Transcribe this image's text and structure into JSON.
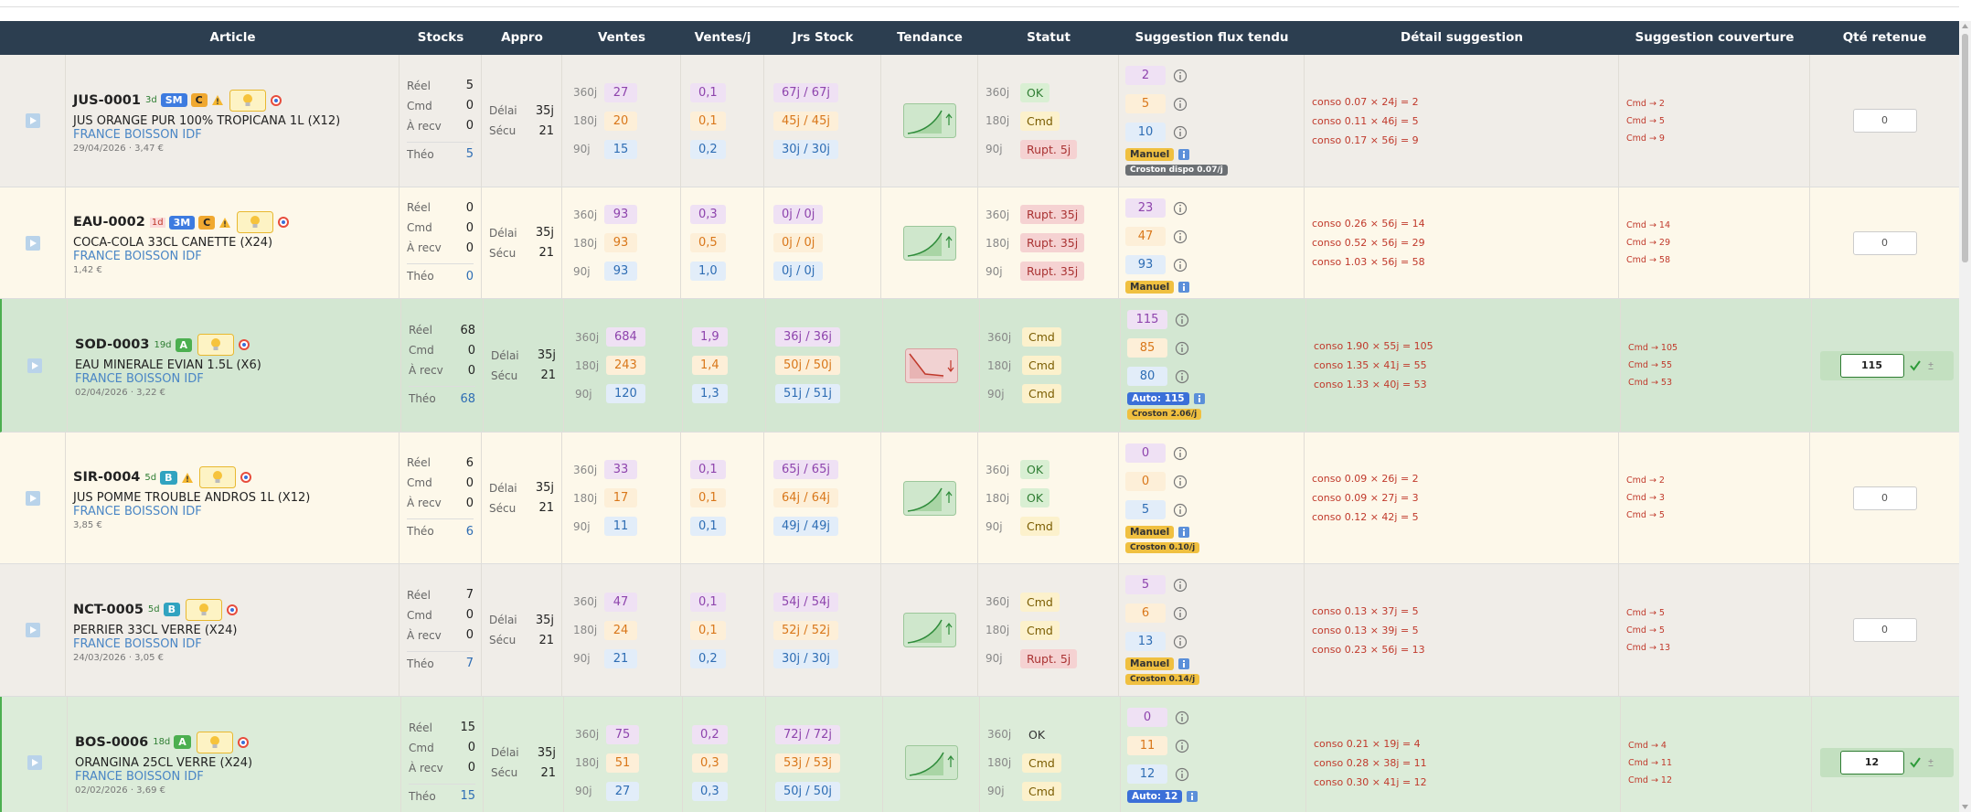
{
  "header": {
    "columns": [
      "Article",
      "Stocks",
      "Appro",
      "Ventes",
      "Ventes/j",
      "Jrs Stock",
      "Tendance",
      "Statut",
      "Suggestion flux tendu",
      "Détail suggestion",
      "Suggestion couverture",
      "Qté retenue"
    ]
  },
  "labels": {
    "periods": [
      "360j",
      "180j",
      "90j"
    ],
    "stock": [
      "Réel",
      "Cmd",
      "À recv",
      "Théo"
    ],
    "delai": "Délai",
    "secu": "Sécu"
  },
  "rows": [
    {
      "tone": "grey",
      "code": "JUS-0001",
      "days": {
        "label": "3d",
        "tone": "green"
      },
      "badges": [
        {
          "label": "SM",
          "tone": "blue"
        },
        {
          "label": "C",
          "tone": "orange"
        }
      ],
      "warning": true,
      "name": "JUS ORANGE PUR 100% TROPICANA 1L (X12)",
      "supplier": "FRANCE BOISSON IDF",
      "meta": "29/04/2026 · 3,47 €",
      "stock": [
        5,
        0,
        0,
        5
      ],
      "delai": "35j",
      "secu": 21,
      "ventes": [
        27,
        20,
        15
      ],
      "ventes_j": [
        "0,1",
        "0,1",
        "0,2"
      ],
      "jrs": [
        "67j / 67j",
        "45j / 45j",
        "30j / 30j"
      ],
      "trend": "up",
      "statut": [
        {
          "label": "OK",
          "tone": "ok"
        },
        {
          "label": "Cmd",
          "tone": "cmd"
        },
        {
          "label": "Rupt. 5j",
          "tone": "rupt"
        }
      ],
      "suggestion": [
        2,
        5,
        10
      ],
      "mode": {
        "label": "Manuel",
        "tone": "manual"
      },
      "croston": {
        "label": "Croston dispo 0.07/j",
        "tone": "dark"
      },
      "detail": [
        "conso 0.07 × 24j = 2",
        "conso 0.11 × 46j = 5",
        "conso 0.17 × 56j = 9"
      ],
      "couverture": [
        "Cmd → 2",
        "Cmd → 5",
        "Cmd → 9"
      ],
      "qte": 0,
      "accepted": false
    },
    {
      "tone": "cream",
      "code": "EAU-0002",
      "days": {
        "label": "1d",
        "tone": "red"
      },
      "badges": [
        {
          "label": "3M",
          "tone": "blue"
        },
        {
          "label": "C",
          "tone": "orange"
        }
      ],
      "warning": true,
      "name": "COCA-COLA 33CL CANETTE (X24)",
      "supplier": "FRANCE BOISSON IDF",
      "meta": "1,42 €",
      "stock": [
        0,
        0,
        0,
        0
      ],
      "delai": "35j",
      "secu": 21,
      "ventes": [
        93,
        93,
        93
      ],
      "ventes_j": [
        "0,3",
        "0,5",
        "1,0"
      ],
      "jrs": [
        "0j / 0j",
        "0j / 0j",
        "0j / 0j"
      ],
      "trend": "up",
      "statut": [
        {
          "label": "Rupt. 35j",
          "tone": "rupt"
        },
        {
          "label": "Rupt. 35j",
          "tone": "rupt"
        },
        {
          "label": "Rupt. 35j",
          "tone": "rupt"
        }
      ],
      "suggestion": [
        23,
        47,
        93
      ],
      "mode": {
        "label": "Manuel",
        "tone": "manual"
      },
      "detail": [
        "conso 0.26 × 56j = 14",
        "conso 0.52 × 56j = 29",
        "conso 1.03 × 56j = 58"
      ],
      "couverture": [
        "Cmd → 14",
        "Cmd → 29",
        "Cmd → 58"
      ],
      "qte": 0,
      "accepted": false
    },
    {
      "tone": "green",
      "code": "SOD-0003",
      "days": {
        "label": "19d",
        "tone": "green"
      },
      "badges": [
        {
          "label": "A",
          "tone": "green"
        }
      ],
      "warning": false,
      "name": "EAU MINERALE EVIAN 1.5L (X6)",
      "supplier": "FRANCE BOISSON IDF",
      "meta": "02/04/2026 · 3,22 €",
      "stock": [
        68,
        0,
        0,
        68
      ],
      "delai": "35j",
      "secu": 21,
      "ventes": [
        684,
        243,
        120
      ],
      "ventes_j": [
        "1,9",
        "1,4",
        "1,3"
      ],
      "jrs": [
        "36j / 36j",
        "50j / 50j",
        "51j / 51j"
      ],
      "trend": "down",
      "statut": [
        {
          "label": "Cmd",
          "tone": "cmd"
        },
        {
          "label": "Cmd",
          "tone": "cmd"
        },
        {
          "label": "Cmd",
          "tone": "cmd"
        }
      ],
      "suggestion": [
        115,
        85,
        80
      ],
      "mode": {
        "label": "Auto: 115",
        "tone": "auto"
      },
      "croston": {
        "label": "Croston 2.06/j",
        "tone": "yellow"
      },
      "detail": [
        "conso 1.90 × 55j = 105",
        "conso 1.35 × 41j = 55",
        "conso 1.33 × 40j = 53"
      ],
      "couverture": [
        "Cmd → 105",
        "Cmd → 55",
        "Cmd → 53"
      ],
      "qte": 115,
      "accepted": true
    },
    {
      "tone": "cream",
      "code": "SIR-0004",
      "days": {
        "label": "5d",
        "tone": "green"
      },
      "badges": [
        {
          "label": "B",
          "tone": "teal"
        }
      ],
      "warning": true,
      "name": "JUS POMME TROUBLE ANDROS 1L (X12)",
      "supplier": "FRANCE BOISSON IDF",
      "meta": "3,85 €",
      "stock": [
        6,
        0,
        0,
        6
      ],
      "delai": "35j",
      "secu": 21,
      "ventes": [
        33,
        17,
        11
      ],
      "ventes_j": [
        "0,1",
        "0,1",
        "0,1"
      ],
      "jrs": [
        "65j / 65j",
        "64j / 64j",
        "49j / 49j"
      ],
      "trend": "up",
      "statut": [
        {
          "label": "OK",
          "tone": "ok"
        },
        {
          "label": "OK",
          "tone": "ok"
        },
        {
          "label": "Cmd",
          "tone": "cmd"
        }
      ],
      "suggestion": [
        0,
        0,
        5
      ],
      "mode": {
        "label": "Manuel",
        "tone": "manual"
      },
      "croston": {
        "label": "Croston 0.10/j",
        "tone": "yellow"
      },
      "detail": [
        "conso 0.09 × 26j = 2",
        "conso 0.09 × 27j = 3",
        "conso 0.12 × 42j = 5"
      ],
      "couverture": [
        "Cmd → 2",
        "Cmd → 3",
        "Cmd → 5"
      ],
      "qte": 0,
      "accepted": false
    },
    {
      "tone": "grey",
      "code": "NCT-0005",
      "days": {
        "label": "5d",
        "tone": "green"
      },
      "badges": [
        {
          "label": "B",
          "tone": "teal"
        }
      ],
      "warning": false,
      "name": "PERRIER 33CL VERRE (X24)",
      "supplier": "FRANCE BOISSON IDF",
      "meta": "24/03/2026 · 3,05 €",
      "stock": [
        7,
        0,
        0,
        7
      ],
      "delai": "35j",
      "secu": 21,
      "ventes": [
        47,
        24,
        21
      ],
      "ventes_j": [
        "0,1",
        "0,1",
        "0,2"
      ],
      "jrs": [
        "54j / 54j",
        "52j / 52j",
        "30j / 30j"
      ],
      "trend": "up",
      "statut": [
        {
          "label": "Cmd",
          "tone": "cmd"
        },
        {
          "label": "Cmd",
          "tone": "cmd"
        },
        {
          "label": "Rupt. 5j",
          "tone": "rupt"
        }
      ],
      "suggestion": [
        5,
        6,
        13
      ],
      "mode": {
        "label": "Manuel",
        "tone": "manual"
      },
      "croston": {
        "label": "Croston 0.14/j",
        "tone": "yellow"
      },
      "detail": [
        "conso 0.13 × 37j = 5",
        "conso 0.13 × 39j = 5",
        "conso 0.23 × 56j = 13"
      ],
      "couverture": [
        "Cmd → 5",
        "Cmd → 5",
        "Cmd → 13"
      ],
      "qte": 0,
      "accepted": false
    },
    {
      "tone": "lightgreen",
      "code": "BOS-0006",
      "days": {
        "label": "18d",
        "tone": "green"
      },
      "badges": [
        {
          "label": "A",
          "tone": "green"
        }
      ],
      "warning": false,
      "name": "ORANGINA 25CL VERRE (X24)",
      "supplier": "FRANCE BOISSON IDF",
      "meta": "02/02/2026 · 3,69 €",
      "stock": [
        15,
        0,
        0,
        15
      ],
      "delai": "35j",
      "secu": 21,
      "ventes": [
        75,
        51,
        27
      ],
      "ventes_j": [
        "0,2",
        "0,3",
        "0,3"
      ],
      "jrs": [
        "72j / 72j",
        "53j / 53j",
        "50j / 50j"
      ],
      "trend": "up",
      "statut": [
        {
          "label": "OK",
          "tone": "plain"
        },
        {
          "label": "Cmd",
          "tone": "cmd"
        },
        {
          "label": "Cmd",
          "tone": "cmd"
        }
      ],
      "suggestion": [
        0,
        11,
        12
      ],
      "mode": {
        "label": "Auto: 12",
        "tone": "auto"
      },
      "detail": [
        "conso 0.21 × 19j = 4",
        "conso 0.28 × 38j = 11",
        "conso 0.30 × 41j = 12"
      ],
      "couverture": [
        "Cmd → 4",
        "Cmd → 11",
        "Cmd → 12"
      ],
      "qte": 12,
      "accepted": true
    }
  ]
}
